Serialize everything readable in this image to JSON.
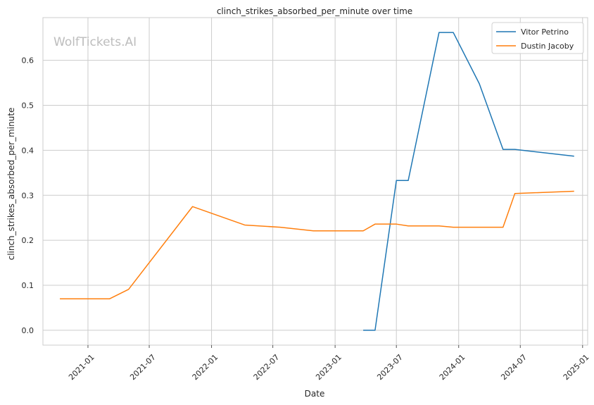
{
  "chart_data": {
    "type": "line",
    "title": "clinch_strikes_absorbed_per_minute over time",
    "xlabel": "Date",
    "ylabel": "clinch_strikes_absorbed_per_minute",
    "watermark": "WolfTickets.AI",
    "x_ticks": [
      "2021-01",
      "2021-07",
      "2022-01",
      "2022-07",
      "2023-01",
      "2023-07",
      "2024-01",
      "2024-07",
      "2025-01"
    ],
    "y_ticks": [
      "0.0",
      "0.1",
      "0.2",
      "0.3",
      "0.4",
      "0.5",
      "0.6"
    ],
    "xlim": [
      "2020-08-21",
      "2025-01-16"
    ],
    "ylim": [
      -0.033,
      0.695
    ],
    "grid": true,
    "legend_position": "top-right",
    "series": [
      {
        "name": "Vitor Petrino",
        "color": "#1f77b4",
        "points": [
          {
            "x": "2023-03-25",
            "y": 0.0
          },
          {
            "x": "2023-04-29",
            "y": 0.0
          },
          {
            "x": "2023-07-01",
            "y": 0.333
          },
          {
            "x": "2023-08-05",
            "y": 0.333
          },
          {
            "x": "2023-11-04",
            "y": 0.662
          },
          {
            "x": "2023-12-16",
            "y": 0.662
          },
          {
            "x": "2024-03-02",
            "y": 0.548
          },
          {
            "x": "2024-05-11",
            "y": 0.402
          },
          {
            "x": "2024-06-15",
            "y": 0.402
          },
          {
            "x": "2024-12-07",
            "y": 0.387
          }
        ]
      },
      {
        "name": "Dustin Jacoby",
        "color": "#ff7f0e",
        "points": [
          {
            "x": "2020-10-10",
            "y": 0.07
          },
          {
            "x": "2021-03-06",
            "y": 0.07
          },
          {
            "x": "2021-05-01",
            "y": 0.091
          },
          {
            "x": "2021-11-06",
            "y": 0.275
          },
          {
            "x": "2022-04-09",
            "y": 0.234
          },
          {
            "x": "2022-07-23",
            "y": 0.229
          },
          {
            "x": "2022-10-29",
            "y": 0.221
          },
          {
            "x": "2023-03-25",
            "y": 0.221
          },
          {
            "x": "2023-04-29",
            "y": 0.236
          },
          {
            "x": "2023-07-01",
            "y": 0.236
          },
          {
            "x": "2023-08-05",
            "y": 0.232
          },
          {
            "x": "2023-11-04",
            "y": 0.232
          },
          {
            "x": "2023-12-16",
            "y": 0.229
          },
          {
            "x": "2024-05-11",
            "y": 0.229
          },
          {
            "x": "2024-06-15",
            "y": 0.304
          },
          {
            "x": "2024-12-07",
            "y": 0.309
          }
        ]
      }
    ]
  }
}
